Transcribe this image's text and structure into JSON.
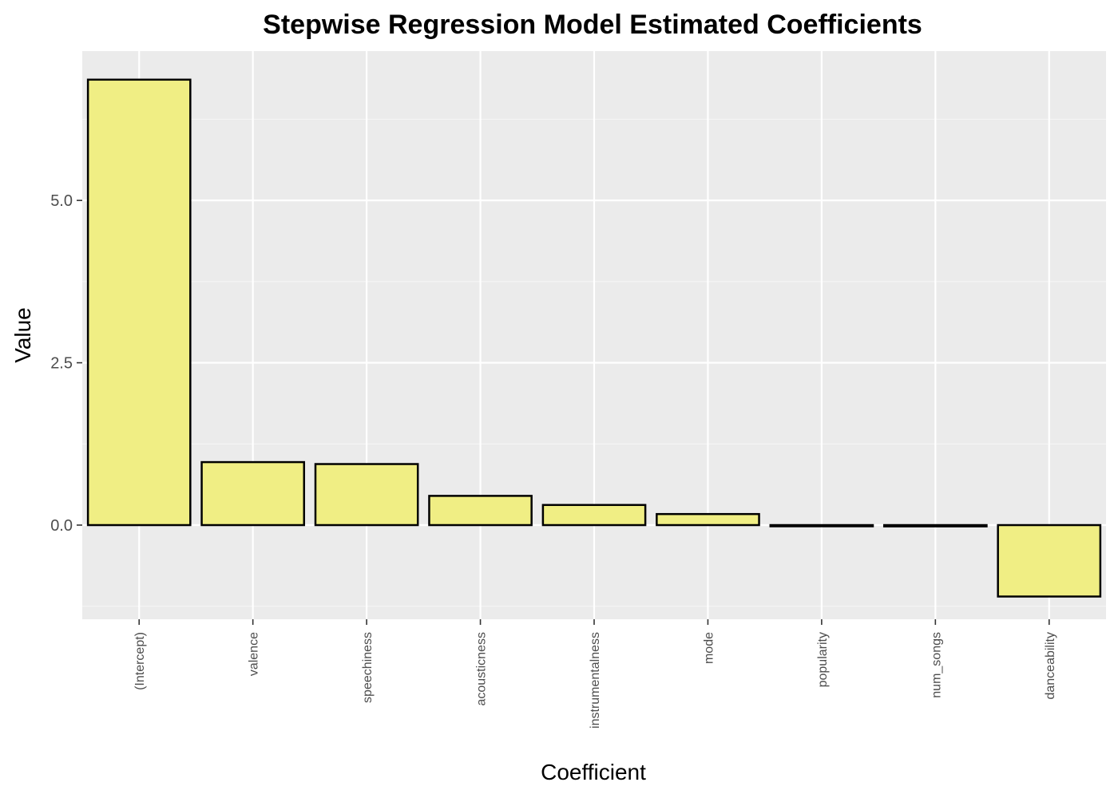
{
  "chart_data": {
    "type": "bar",
    "title": "Stepwise Regression Model Estimated Coefficients",
    "xlabel": "Coefficient",
    "ylabel": "Value",
    "categories": [
      "(Intercept)",
      "valence",
      "speechiness",
      "acousticness",
      "instrumentalness",
      "mode",
      "popularity",
      "num_songs",
      "danceability"
    ],
    "values": [
      6.86,
      0.97,
      0.94,
      0.45,
      0.31,
      0.17,
      -0.01,
      -0.02,
      -1.1
    ],
    "ylim": [
      -1.45,
      7.3
    ],
    "y_ticks": [
      0.0,
      2.5,
      5.0
    ],
    "y_tick_labels": [
      "0.0",
      "2.5",
      "5.0"
    ],
    "y_minor_ticks": [
      -1.25,
      1.25,
      3.75,
      6.25
    ],
    "grid": true,
    "legend": "none",
    "colors": {
      "bar_fill": "#f0ee84",
      "bar_stroke": "#000000",
      "panel_background": "#ebebeb",
      "grid_major": "#ffffff",
      "grid_minor": "#f5f5f5",
      "axis_text": "#4d4d4d"
    }
  }
}
